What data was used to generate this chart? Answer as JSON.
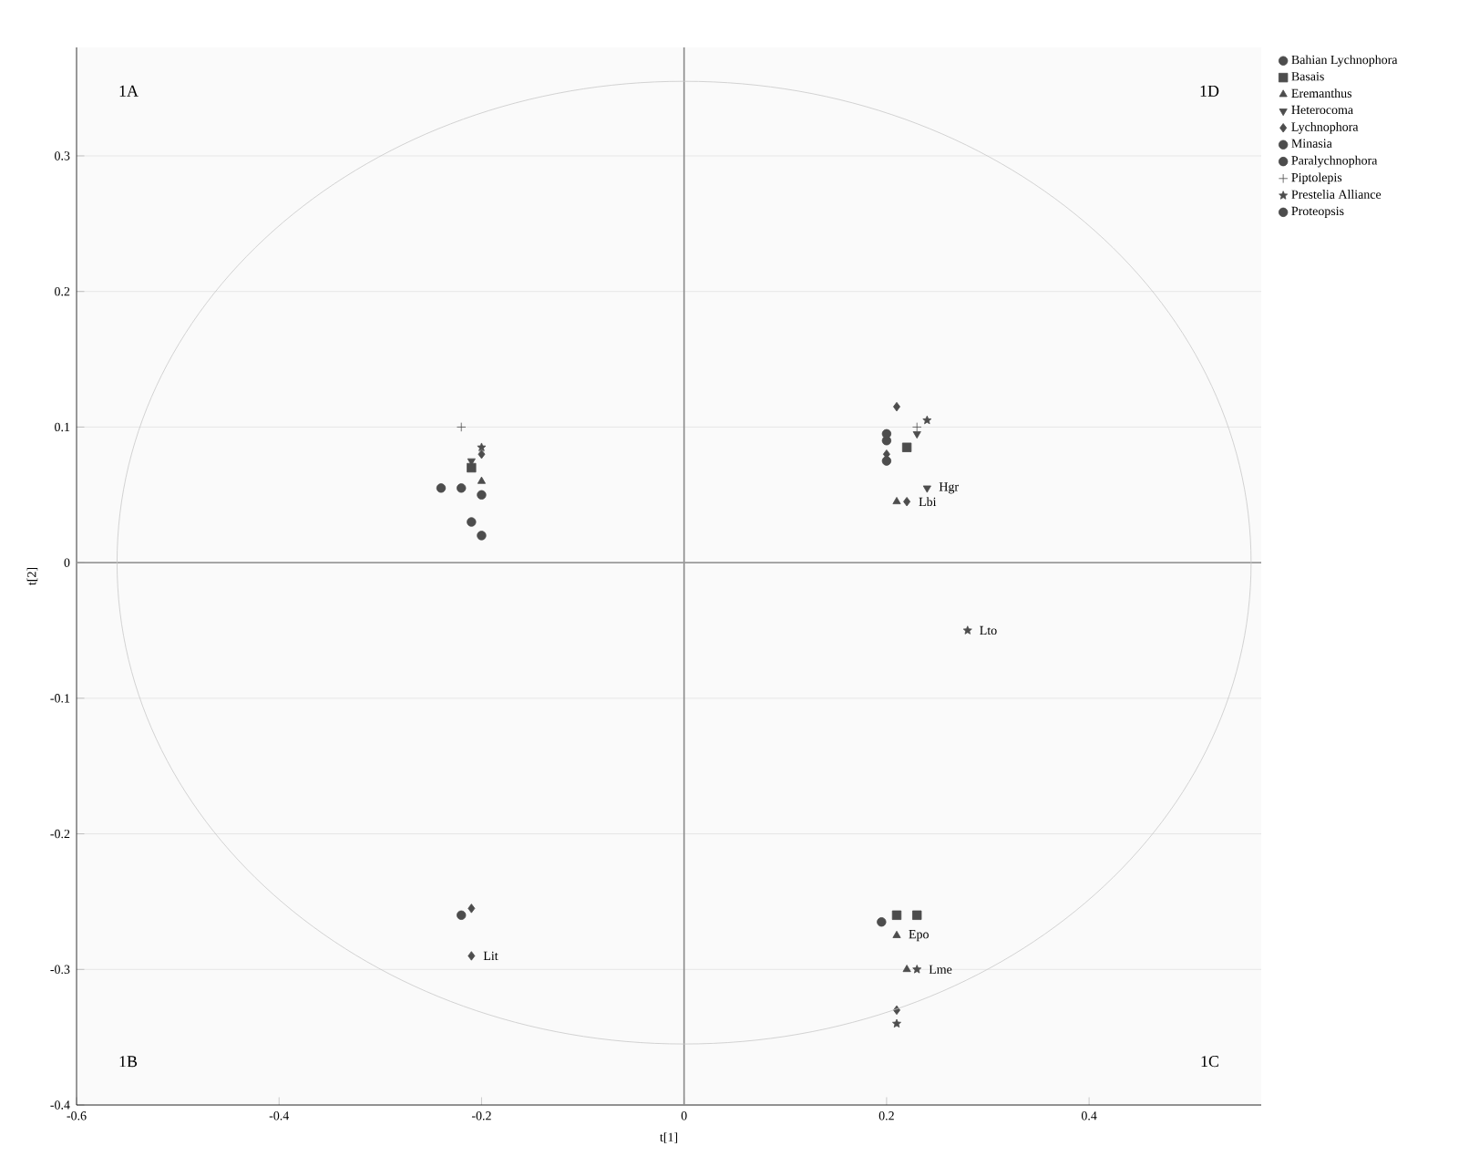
{
  "chart_data": {
    "type": "scatter",
    "xlabel": "t[1]",
    "ylabel": "t[2]",
    "xlim": [
      -0.6,
      0.57
    ],
    "ylim": [
      -0.4,
      0.38
    ],
    "xticks": [
      -0.6,
      -0.4,
      -0.2,
      0,
      0.2,
      0.4
    ],
    "yticks": [
      -0.4,
      -0.3,
      -0.2,
      -0.1,
      0,
      0.1,
      0.2,
      0.3
    ],
    "grid": "y",
    "legend": "top right",
    "ref_lines": [
      {
        "axis": "x",
        "value": 0,
        "color": "#8a8a8a"
      },
      {
        "axis": "y",
        "value": 0,
        "color": "#9a9a9a"
      }
    ],
    "annotations": [
      "1A",
      "1B",
      "1C",
      "1D",
      {
        "text": "Lto",
        "x": 0.28,
        "y": -0.05
      },
      {
        "text": "Lit",
        "x": -0.21,
        "y": -0.29
      },
      {
        "text": "Hgr",
        "x": 0.24,
        "y": 0.055
      },
      {
        "text": "Lbi",
        "x": 0.22,
        "y": 0.045
      },
      {
        "text": "Epo",
        "x": 0.21,
        "y": -0.275
      },
      {
        "text": "Lme",
        "x": 0.23,
        "y": -0.3
      }
    ],
    "series": [
      {
        "name": "Bahian Lychnophora",
        "color": "#4d4d4d",
        "marker": "circle",
        "x": [
          -0.22,
          0.2
        ],
        "values": [
          0.055,
          0.09
        ]
      },
      {
        "name": "Basais",
        "color": "#4d4d4d",
        "marker": "square",
        "x": [
          -0.21,
          0.22,
          0.21,
          0.23
        ],
        "values": [
          0.07,
          0.085,
          -0.26,
          -0.26
        ]
      },
      {
        "name": "Eremanthus",
        "color": "#4d4d4d",
        "marker": "triangle",
        "x": [
          -0.2,
          0.21,
          0.21,
          0.22
        ],
        "values": [
          0.06,
          0.045,
          -0.275,
          -0.3
        ]
      },
      {
        "name": "Heterocoma",
        "color": "#4d4d4d",
        "marker": "triangle_down",
        "x": [
          0.24,
          -0.21,
          0.23
        ],
        "values": [
          0.055,
          0.075,
          0.095
        ]
      },
      {
        "name": "Lychnophora",
        "color": "#4d4d4d",
        "marker": "diamond",
        "x": [
          0.21,
          0.22,
          -0.21,
          0.21,
          0.2,
          -0.2,
          -0.21
        ],
        "values": [
          0.115,
          0.045,
          -0.29,
          -0.33,
          0.08,
          0.08,
          -0.255
        ]
      },
      {
        "name": "Minasia",
        "color": "#4d4d4d",
        "x": [
          0.2,
          -0.2,
          -0.22
        ],
        "values": [
          0.095,
          0.05,
          -0.26
        ]
      },
      {
        "name": "Paralychnophora",
        "color": "#4d4d4d",
        "marker": "circle",
        "x": [
          -0.24,
          -0.21,
          0.195,
          0.2
        ],
        "values": [
          0.055,
          0.03,
          -0.265,
          0.075
        ]
      },
      {
        "name": "Piptolepis",
        "color": "#4d4d4d",
        "marker": "plus",
        "x": [
          -0.22,
          0.23
        ],
        "values": [
          0.1,
          0.1
        ]
      },
      {
        "name": "Prestelia Alliance",
        "color": "#4d4d4d",
        "marker": "star",
        "x": [
          0.28,
          0.21,
          0.23,
          -0.2,
          0.24
        ],
        "values": [
          -0.05,
          -0.34,
          -0.3,
          0.085,
          0.105
        ]
      },
      {
        "name": "Proteopsis",
        "color": "#4d4d4d",
        "marker": "circle",
        "x": [
          -0.2
        ],
        "values": [
          0.02
        ]
      }
    ]
  }
}
